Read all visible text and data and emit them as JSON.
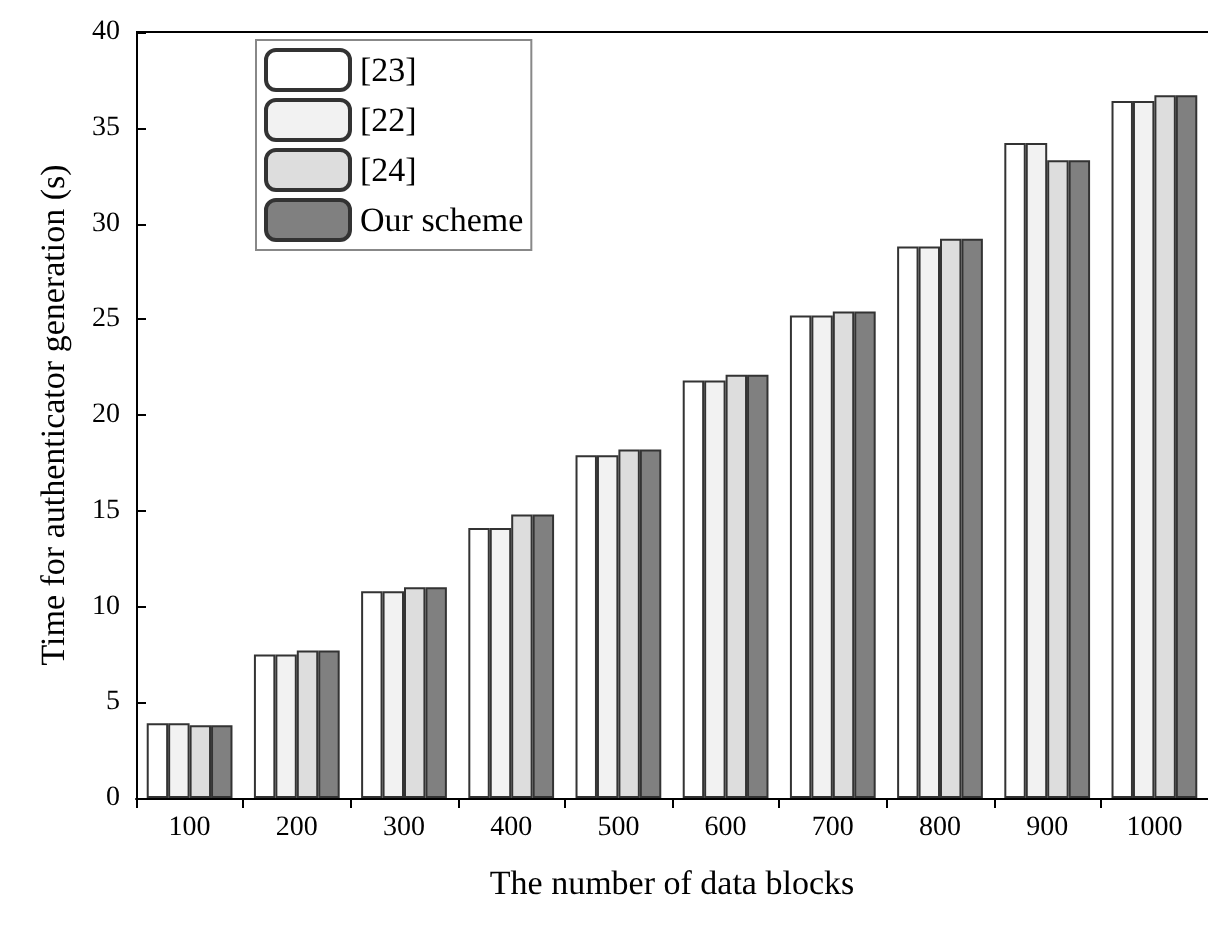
{
  "chart_data": {
    "type": "bar",
    "xlabel": "The number of data blocks",
    "ylabel": "Time for authenticator generation (s)",
    "categories": [
      "100",
      "200",
      "300",
      "400",
      "500",
      "600",
      "700",
      "800",
      "900",
      "1000"
    ],
    "series": [
      {
        "name": "[23]",
        "color": "#ffffff",
        "values": [
          3.9,
          7.5,
          10.8,
          14.1,
          17.9,
          21.8,
          25.2,
          28.8,
          34.2,
          36.4
        ]
      },
      {
        "name": "[22]",
        "color": "#f2f2f2",
        "values": [
          3.9,
          7.5,
          10.8,
          14.1,
          17.9,
          21.8,
          25.2,
          28.8,
          34.2,
          36.4
        ]
      },
      {
        "name": "[24]",
        "color": "#dddddd",
        "values": [
          3.8,
          7.7,
          11.0,
          14.8,
          18.2,
          22.1,
          25.4,
          29.2,
          33.3,
          36.7
        ]
      },
      {
        "name": "Our scheme",
        "color": "#808080",
        "values": [
          3.8,
          7.7,
          11.0,
          14.8,
          18.2,
          22.1,
          25.4,
          29.2,
          33.3,
          36.7
        ]
      }
    ],
    "ylim": [
      0,
      40
    ],
    "yticks": [
      0,
      5,
      10,
      15,
      20,
      25,
      30,
      35,
      40
    ],
    "grid": false,
    "legend": "top left"
  }
}
